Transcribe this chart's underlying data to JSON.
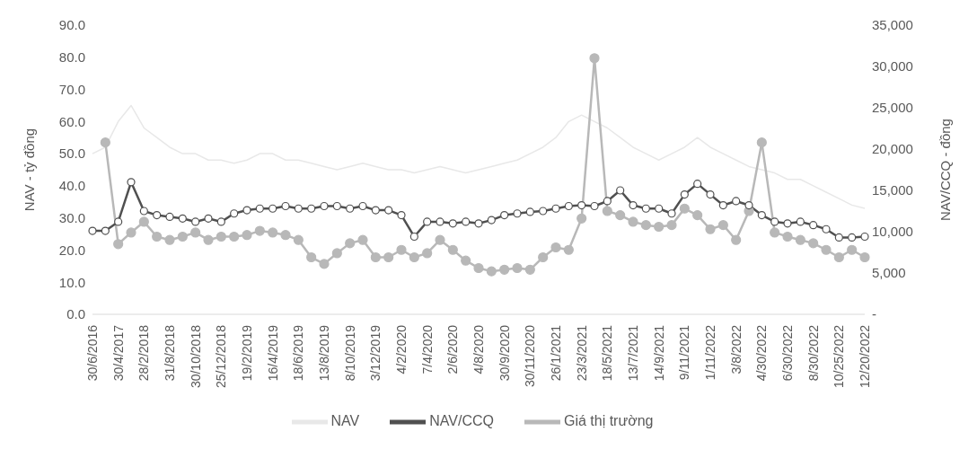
{
  "chart_data": {
    "type": "line",
    "categories": [
      "30/6/2016",
      null,
      "30/4/2017",
      null,
      "28/2/2018",
      null,
      "31/8/2018",
      null,
      "30/10/2018",
      null,
      "25/12/2018",
      null,
      "19/2/2019",
      null,
      "16/4/2019",
      null,
      "18/6/2019",
      null,
      "13/8/2019",
      null,
      "8/10/2019",
      null,
      "3/12/2019",
      null,
      "4/2/2020",
      null,
      "7/4/2020",
      null,
      "2/6/2020",
      null,
      "4/8/2020",
      null,
      "30/9/2020",
      null,
      "30/11/2020",
      null,
      "26/1/2021",
      null,
      "23/3/2021",
      null,
      "18/5/2021",
      null,
      "13/7/2021",
      null,
      "14/9/2021",
      null,
      "9/11/2021",
      null,
      "1/11/2022",
      null,
      "3/8/2022",
      null,
      "4/30/2022",
      null,
      "6/30/2022",
      null,
      "8/30/2022",
      null,
      "10/25/2022",
      null,
      "12/20/2022"
    ],
    "series": [
      {
        "name": "NAV",
        "color": "#e8e8e8",
        "marker": "none",
        "values": [
          50,
          52,
          60,
          65,
          58,
          55,
          52,
          50,
          50,
          48,
          48,
          47,
          48,
          50,
          50,
          48,
          48,
          47,
          46,
          45,
          46,
          47,
          46,
          45,
          45,
          44,
          45,
          46,
          45,
          44,
          45,
          46,
          47,
          48,
          50,
          52,
          55,
          60,
          62,
          60,
          58,
          55,
          52,
          50,
          48,
          50,
          52,
          55,
          52,
          50,
          48,
          46,
          45,
          44,
          42,
          42,
          40,
          38,
          36,
          34,
          33
        ]
      },
      {
        "name": "NAV/CCQ",
        "color": "#505050",
        "axis": "y2",
        "marker": "circle",
        "values": [
          10100,
          10100,
          11200,
          16000,
          12500,
          12000,
          11800,
          11600,
          11200,
          11600,
          11200,
          12200,
          12600,
          12800,
          12800,
          13100,
          12800,
          12800,
          13100,
          13100,
          12800,
          13100,
          12600,
          12600,
          12000,
          9400,
          11200,
          11200,
          11000,
          11200,
          11000,
          11400,
          12000,
          12200,
          12400,
          12500,
          12800,
          13100,
          13200,
          13100,
          13700,
          15000,
          13200,
          12800,
          12800,
          12200,
          14500,
          15800,
          14500,
          13200,
          13700,
          13200,
          12000,
          11200,
          11000,
          11200,
          10800,
          10300,
          9300,
          9300,
          9400
        ]
      },
      {
        "name": "Giá thị trường",
        "color": "#b8b8b8",
        "axis": "y2",
        "marker": "circle",
        "values": [
          null,
          20800,
          8500,
          9900,
          11200,
          9400,
          9000,
          9400,
          9900,
          9000,
          9400,
          9400,
          9600,
          10100,
          9900,
          9600,
          9000,
          6900,
          6100,
          7400,
          8600,
          9000,
          6900,
          6900,
          7800,
          6900,
          7400,
          9000,
          7800,
          6500,
          5600,
          5200,
          5400,
          5600,
          5400,
          6900,
          8100,
          7800,
          11600,
          31000,
          12500,
          12000,
          11200,
          10800,
          10600,
          10800,
          12800,
          12000,
          10300,
          10800,
          9000,
          12500,
          20800,
          9900,
          9400,
          9000,
          8600,
          7800,
          6900,
          7800,
          6900
        ]
      }
    ],
    "ylabel": "NAV - tỷ đồng",
    "y2label": "NAV/CCQ - đồng",
    "ylim": [
      0,
      90
    ],
    "yticks": [
      {
        "value": 0,
        "label": "0.0"
      },
      {
        "value": 10,
        "label": "10.0"
      },
      {
        "value": 20,
        "label": "20.0"
      },
      {
        "value": 30,
        "label": "30.0"
      },
      {
        "value": 40,
        "label": "40.0"
      },
      {
        "value": 50,
        "label": "50.0"
      },
      {
        "value": 60,
        "label": "60.0"
      },
      {
        "value": 70,
        "label": "70.0"
      },
      {
        "value": 80,
        "label": "80.0"
      },
      {
        "value": 90,
        "label": "90.0"
      }
    ],
    "y2lim": [
      0,
      35000
    ],
    "y2ticks": [
      {
        "value": 0,
        "label": "-"
      },
      {
        "value": 5000,
        "label": "5,000"
      },
      {
        "value": 10000,
        "label": "10,000"
      },
      {
        "value": 15000,
        "label": "15,000"
      },
      {
        "value": 20000,
        "label": "20,000"
      },
      {
        "value": 25000,
        "label": "25,000"
      },
      {
        "value": 30000,
        "label": "30,000"
      },
      {
        "value": 35000,
        "label": "35,000"
      }
    ],
    "grid": false,
    "legend": "bottom"
  }
}
